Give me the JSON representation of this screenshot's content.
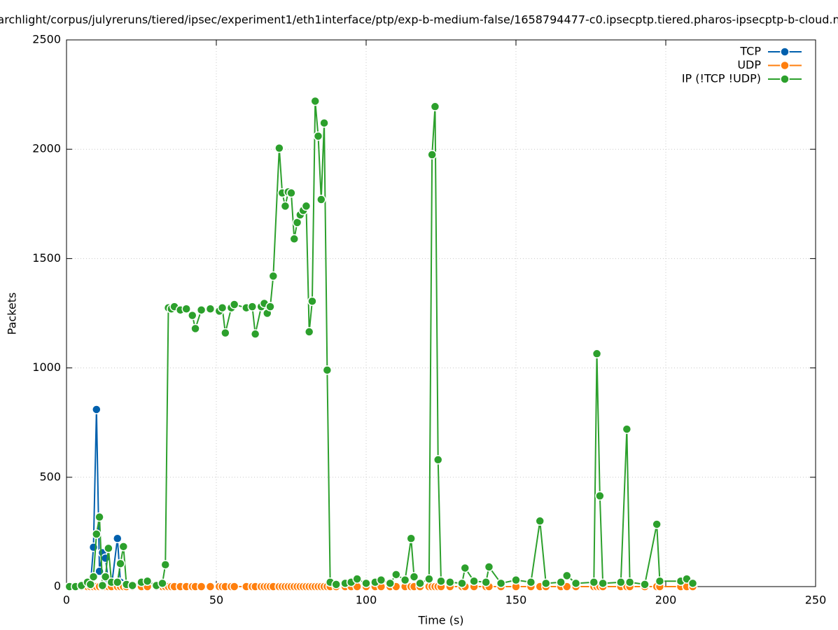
{
  "chart_data": {
    "type": "line",
    "title": "archlight/corpus/julyreruns/tiered/ipsec/experiment1/eth1interface/ptp/exp-b-medium-false/1658794477-c0.ipsecptp.tiered.pharos-ipsecptp-b-cloud.n",
    "x_label": "Time (s)",
    "y_label": "Packets",
    "xlim": [
      0,
      250
    ],
    "xticks": [
      0,
      50,
      100,
      150,
      200,
      250
    ],
    "ylim": [
      0,
      2500
    ],
    "yticks": [
      0,
      500,
      1000,
      1500,
      2000,
      2500
    ],
    "grid": true,
    "legend": "top-right",
    "x": [
      1,
      3,
      5,
      7,
      8,
      9,
      10,
      11,
      12,
      13,
      14,
      15,
      17,
      18,
      19,
      20,
      22,
      25,
      27,
      30,
      32,
      33,
      34,
      35,
      36,
      38,
      40,
      42,
      43,
      45,
      48,
      51,
      52,
      53,
      55,
      56,
      60,
      62,
      63,
      65,
      66,
      67,
      68,
      69,
      71,
      72,
      73,
      74,
      75,
      76,
      77,
      78,
      79,
      80,
      81,
      82,
      83,
      84,
      85,
      86,
      87,
      88,
      90,
      93,
      95,
      97,
      100,
      103,
      105,
      108,
      110,
      113,
      115,
      116,
      118,
      121,
      122,
      123,
      124,
      125,
      128,
      132,
      133,
      136,
      140,
      141,
      145,
      150,
      155,
      158,
      160,
      165,
      167,
      170,
      176,
      177,
      178,
      179,
      185,
      187,
      188,
      193,
      197,
      198,
      205,
      207,
      209
    ],
    "series": [
      {
        "name": "TCP",
        "color": "#0060ad",
        "values": [
          0,
          0,
          0,
          5,
          10,
          180,
          810,
          70,
          155,
          130,
          20,
          0,
          220,
          20,
          5,
          0,
          0,
          0,
          0,
          0,
          0,
          0,
          0,
          0,
          0,
          0,
          0,
          0,
          0,
          0,
          0,
          0,
          0,
          0,
          0,
          0,
          0,
          0,
          0,
          0,
          0,
          0,
          0,
          0,
          0,
          0,
          0,
          0,
          0,
          0,
          0,
          0,
          0,
          0,
          0,
          0,
          0,
          0,
          0,
          0,
          0,
          0,
          0,
          0,
          0,
          0,
          0,
          0,
          0,
          0,
          0,
          0,
          0,
          0,
          0,
          0,
          0,
          0,
          0,
          0,
          0,
          0,
          0,
          0,
          0,
          0,
          0,
          0,
          0,
          0,
          0,
          0,
          0,
          0,
          0,
          0,
          0,
          0,
          0,
          0,
          0,
          0,
          0,
          0,
          0,
          0,
          0
        ]
      },
      {
        "name": "UDP",
        "color": "#ff7f0e",
        "values": [
          0,
          0,
          0,
          0,
          0,
          0,
          0,
          0,
          0,
          0,
          0,
          0,
          0,
          0,
          0,
          0,
          0,
          0,
          0,
          0,
          0,
          0,
          0,
          0,
          0,
          0,
          0,
          0,
          0,
          0,
          0,
          0,
          0,
          0,
          0,
          0,
          0,
          0,
          0,
          0,
          0,
          0,
          0,
          0,
          0,
          0,
          0,
          0,
          0,
          0,
          0,
          0,
          0,
          0,
          0,
          0,
          0,
          0,
          0,
          0,
          0,
          0,
          0,
          0,
          0,
          0,
          0,
          0,
          0,
          0,
          0,
          0,
          0,
          0,
          0,
          0,
          0,
          0,
          0,
          0,
          0,
          0,
          0,
          0,
          0,
          0,
          0,
          0,
          0,
          0,
          0,
          0,
          0,
          0,
          0,
          0,
          0,
          0,
          0,
          0,
          0,
          0,
          0,
          0,
          0,
          0,
          0
        ]
      },
      {
        "name": "IP (!TCP  !UDP)",
        "color": "#2ca02c",
        "values": [
          0,
          0,
          5,
          20,
          10,
          45,
          240,
          318,
          5,
          45,
          175,
          20,
          20,
          105,
          183,
          10,
          5,
          20,
          25,
          5,
          15,
          100,
          1275,
          1270,
          1280,
          1265,
          1270,
          1240,
          1180,
          1265,
          1270,
          1260,
          1275,
          1160,
          1275,
          1290,
          1275,
          1280,
          1155,
          1280,
          1295,
          1250,
          1280,
          1420,
          2005,
          1800,
          1740,
          1805,
          1800,
          1590,
          1665,
          1700,
          1720,
          1740,
          1165,
          1305,
          2220,
          2060,
          1770,
          2120,
          990,
          20,
          10,
          15,
          20,
          35,
          15,
          20,
          30,
          15,
          55,
          30,
          220,
          45,
          15,
          35,
          1975,
          2195,
          580,
          25,
          20,
          15,
          85,
          25,
          20,
          90,
          15,
          30,
          20,
          300,
          15,
          20,
          50,
          15,
          20,
          1065,
          415,
          15,
          20,
          720,
          20,
          10,
          285,
          25,
          25,
          35,
          15
        ]
      }
    ]
  }
}
